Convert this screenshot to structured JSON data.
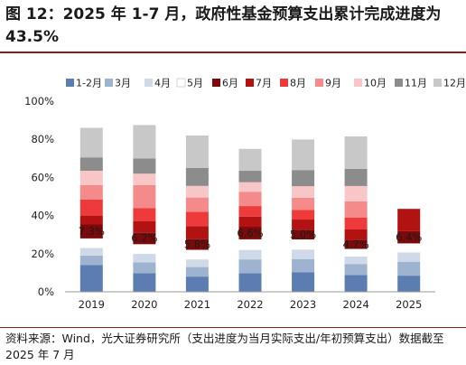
{
  "title_text": "图 12：2025 年 1-7 月，政府性基金预算支出累计完成进度为 43.5%",
  "source_text": "资料来源：Wind，光大证券研究所（支出进度为当月实际支出/年初预算支出）数据截至 2025 年 7 月",
  "colors": {
    "rule": "#8c1d1d",
    "series": [
      "#5b7db1",
      "#9eb3cf",
      "#cfd9e8",
      "#ffffff",
      "#7d0a0a",
      "#b31212",
      "#ee3a3a",
      "#f48a8a",
      "#f8c6c6",
      "#8c8c8c",
      "#c8c8c8"
    ]
  },
  "chart_data": {
    "type": "bar",
    "stacked": true,
    "categories": [
      "2019",
      "2020",
      "2021",
      "2022",
      "2023",
      "2024",
      "2025"
    ],
    "ylim": [
      0,
      100
    ],
    "yticks": [
      "0%",
      "20%",
      "40%",
      "60%",
      "80%",
      "100%"
    ],
    "grid": false,
    "legend_position": "top",
    "series": [
      {
        "name": "1-2月",
        "values": [
          14.0,
          9.8,
          8.0,
          9.8,
          10.2,
          8.8,
          8.5
        ]
      },
      {
        "name": "3月",
        "values": [
          5.0,
          5.7,
          5.0,
          7.2,
          7.0,
          5.8,
          7.3
        ]
      },
      {
        "name": "4月",
        "values": [
          4.0,
          4.5,
          4.0,
          5.0,
          5.0,
          3.9,
          4.8
        ]
      },
      {
        "name": "5月",
        "values": [
          5.0,
          5.0,
          5.0,
          5.5,
          5.3,
          4.0,
          4.8
        ]
      },
      {
        "name": "6月",
        "values": [
          7.3,
          6.2,
          5.8,
          6.6,
          5.0,
          4.7,
          6.4
        ]
      },
      {
        "name": "7月",
        "values": [
          4.7,
          5.8,
          6.7,
          5.4,
          5.4,
          5.5,
          11.7
        ]
      },
      {
        "name": "8月",
        "values": [
          8.5,
          7.0,
          7.5,
          5.5,
          5.0,
          6.3,
          null
        ]
      },
      {
        "name": "9月",
        "values": [
          7.5,
          12.0,
          7.5,
          7.5,
          6.5,
          8.5,
          null
        ]
      },
      {
        "name": "10月",
        "values": [
          7.5,
          6.0,
          6.0,
          5.0,
          6.0,
          8.0,
          null
        ]
      },
      {
        "name": "11月",
        "values": [
          7.0,
          8.0,
          9.5,
          6.0,
          8.5,
          9.0,
          null
        ]
      },
      {
        "name": "12月",
        "values": [
          15.5,
          17.5,
          17.0,
          11.5,
          16.0,
          17.0,
          null
        ]
      }
    ],
    "data_labels": [
      "7.3%",
      "6.2%",
      "5.8%",
      "6.6%",
      "5.0%",
      "4.7%",
      "6.4%"
    ]
  }
}
